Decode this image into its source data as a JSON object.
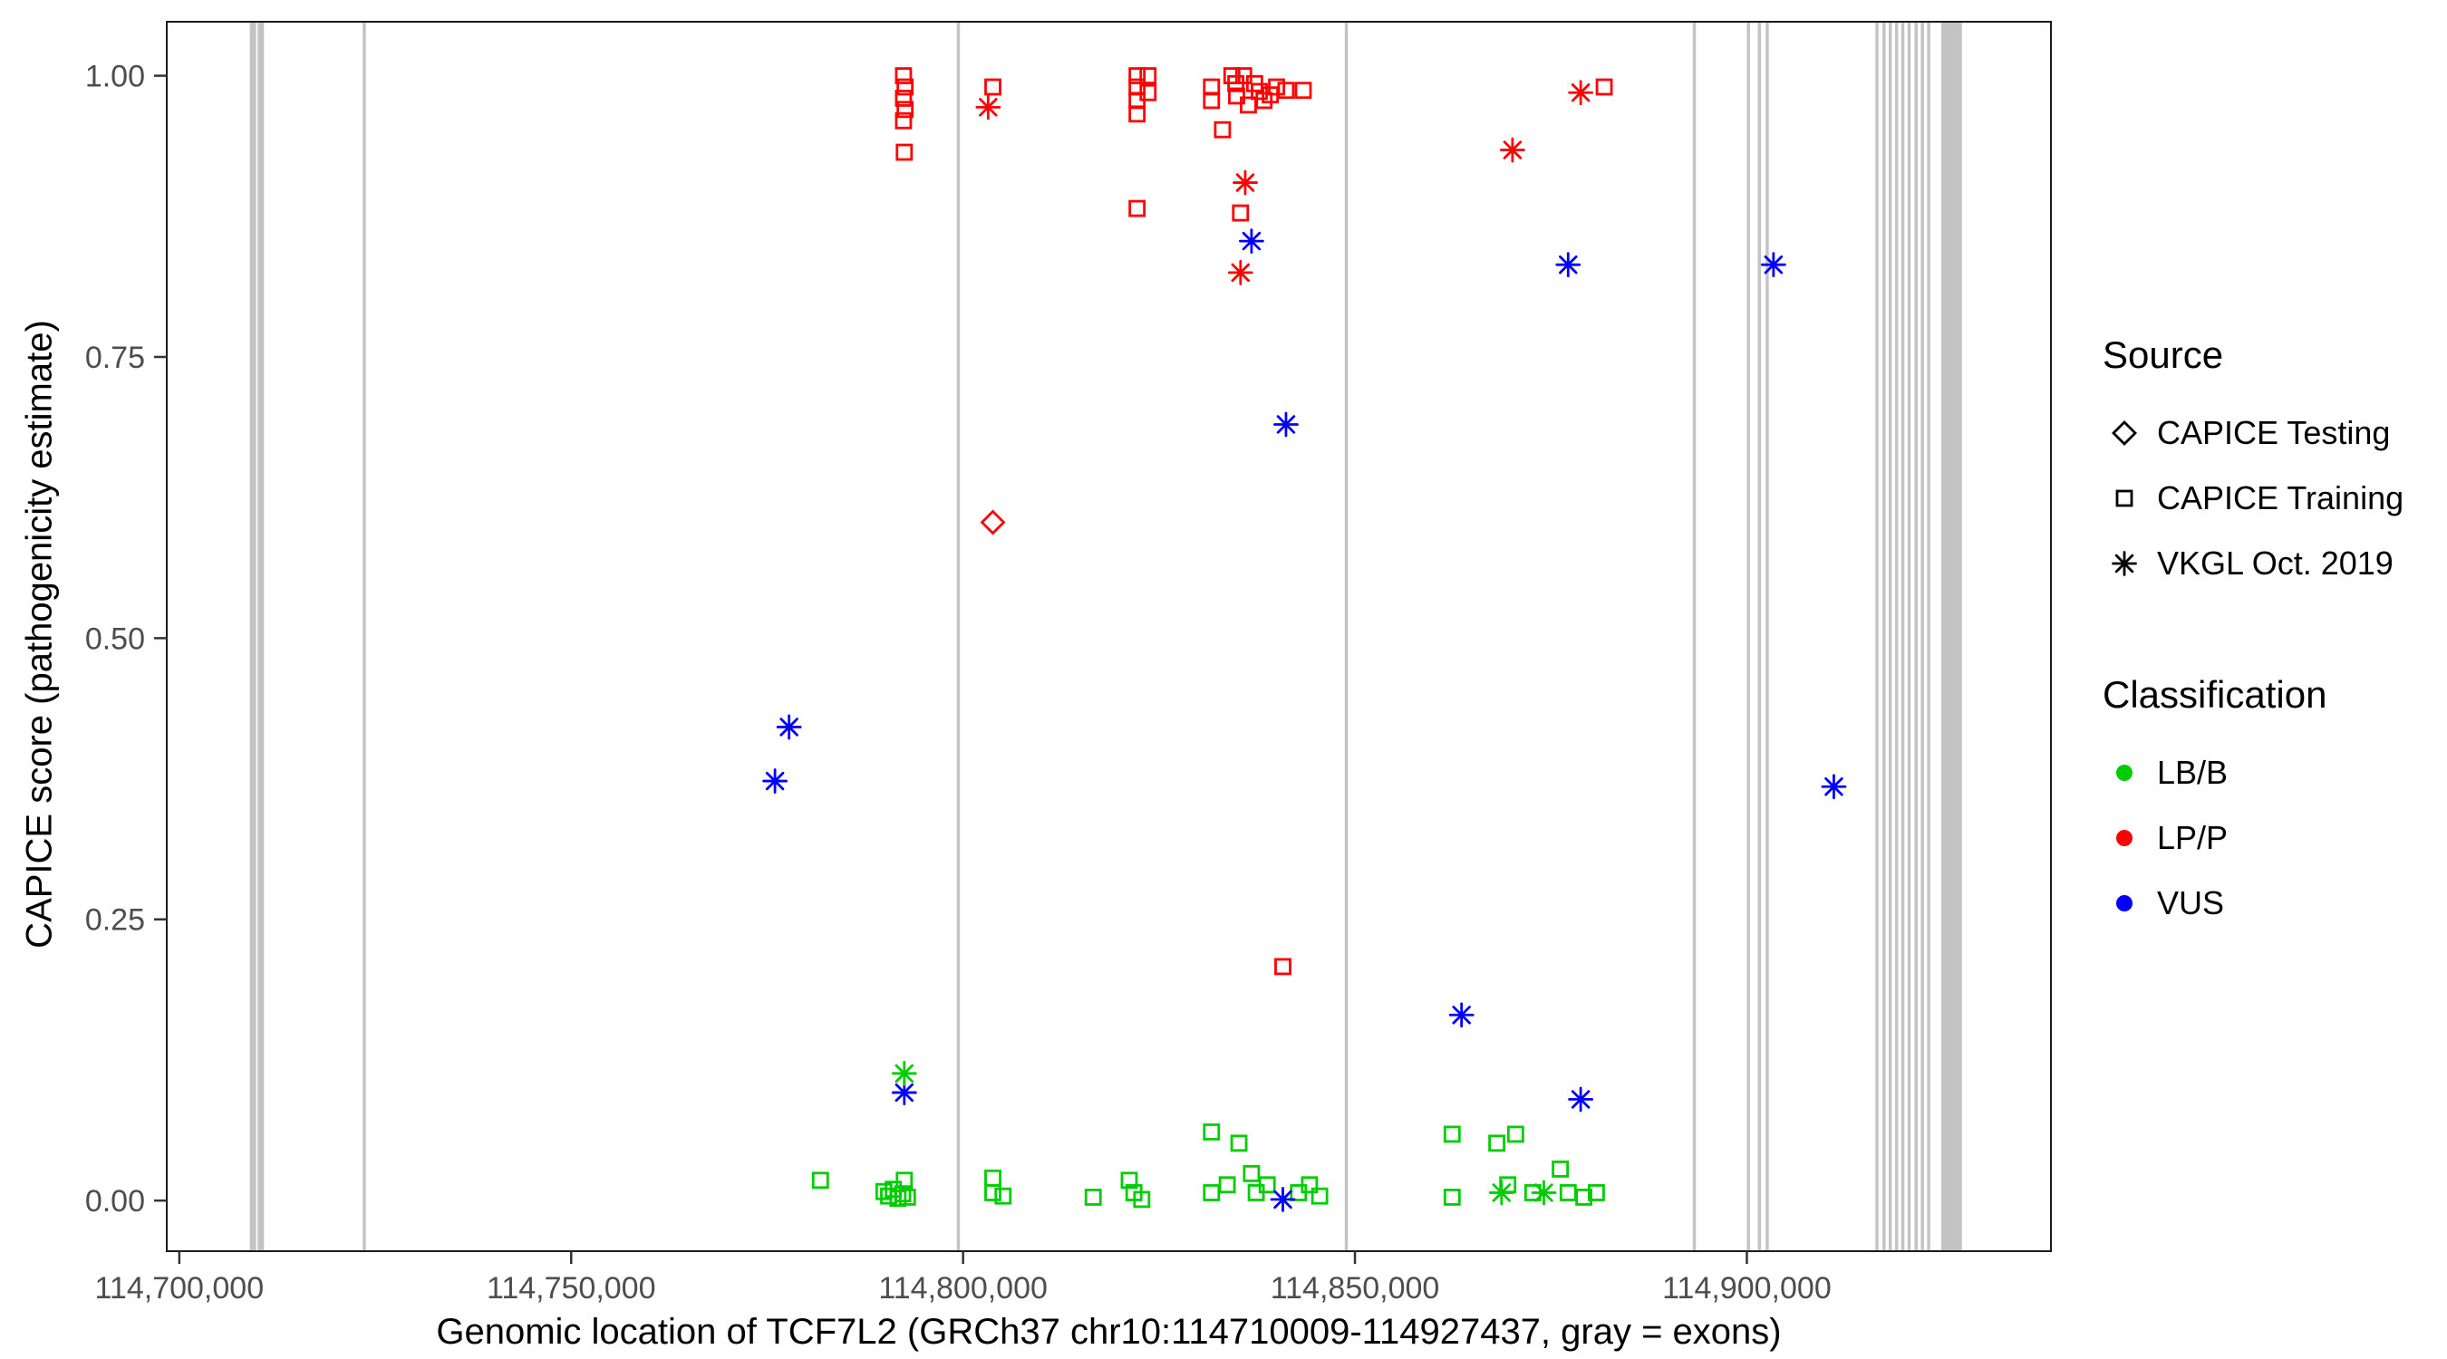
{
  "chart_data": {
    "type": "scatter",
    "title": "",
    "xlabel": "Genomic location of TCF7L2 (GRCh37 chr10:114710009-114927437, gray = exons)",
    "ylabel": "CAPICE score (pathogenicity estimate)",
    "x_axis": {
      "min": 114698400,
      "max": 114938800,
      "ticks": [
        {
          "value": 114700000,
          "label": "114,700,000"
        },
        {
          "value": 114750000,
          "label": "114,750,000"
        },
        {
          "value": 114800000,
          "label": "114,800,000"
        },
        {
          "value": 114850000,
          "label": "114,850,000"
        },
        {
          "value": 114900000,
          "label": "114,900,000"
        }
      ]
    },
    "y_axis": {
      "min": -0.045,
      "max": 1.048,
      "ticks": [
        {
          "value": 0,
          "label": "0.00"
        },
        {
          "value": 0.25,
          "label": "0.25"
        },
        {
          "value": 0.5,
          "label": "0.50"
        },
        {
          "value": 0.75,
          "label": "0.75"
        },
        {
          "value": 1,
          "label": "1.00"
        }
      ]
    },
    "grid": "off",
    "legend_position": "right",
    "exon_color": "#C3C3C3",
    "exons": [
      [
        114709000,
        114709800
      ],
      [
        114710000,
        114710800
      ],
      [
        114723400,
        114723800
      ],
      [
        114799200,
        114799600
      ],
      [
        114848700,
        114849100
      ],
      [
        114893100,
        114893500
      ],
      [
        114900000,
        114900400
      ],
      [
        114901400,
        114901800
      ],
      [
        114902400,
        114902800
      ],
      [
        114916400,
        114916800
      ],
      [
        114917300,
        114917700
      ],
      [
        114918100,
        114918500
      ],
      [
        114918900,
        114919300
      ],
      [
        114919700,
        114920100
      ],
      [
        114920500,
        114920900
      ],
      [
        114921400,
        114921800
      ],
      [
        114922200,
        114922600
      ],
      [
        114923000,
        114923400
      ],
      [
        114924800,
        114927437
      ]
    ],
    "colors": {
      "LB/B": "#00CD00",
      "LP/P": "#FF0000",
      "VUS": "#0000FF"
    },
    "shapes": {
      "CAPICE Testing": "diamond",
      "CAPICE Training": "square",
      "VKGL Oct. 2019": "asterisk"
    },
    "series": [
      {
        "source": "CAPICE Testing",
        "classification": "LP/P",
        "points": [
          [
            114803800,
            0.603
          ]
        ]
      },
      {
        "source": "CAPICE Training",
        "classification": "LP/P",
        "points": [
          [
            114792400,
            1.0
          ],
          [
            114792600,
            0.99
          ],
          [
            114792400,
            0.98
          ],
          [
            114792600,
            0.97
          ],
          [
            114792400,
            0.96
          ],
          [
            114792500,
            0.932
          ],
          [
            114803800,
            0.99
          ],
          [
            114822200,
            1.0
          ],
          [
            114822200,
            0.99
          ],
          [
            114822200,
            0.978
          ],
          [
            114822200,
            0.966
          ],
          [
            114823600,
            1.0
          ],
          [
            114823600,
            0.985
          ],
          [
            114822200,
            0.882
          ],
          [
            114831700,
            0.99
          ],
          [
            114831700,
            0.978
          ],
          [
            114833100,
            0.952
          ],
          [
            114834300,
            1.0
          ],
          [
            114834800,
            0.993
          ],
          [
            114834900,
            0.982
          ],
          [
            114835800,
            1.0
          ],
          [
            114836400,
            0.974
          ],
          [
            114837200,
            0.993
          ],
          [
            114837800,
            0.986
          ],
          [
            114838400,
            0.978
          ],
          [
            114839200,
            0.983
          ],
          [
            114840000,
            0.99
          ],
          [
            114841200,
            0.987
          ],
          [
            114843400,
            0.987
          ],
          [
            114835400,
            0.878
          ],
          [
            114840800,
            0.208
          ],
          [
            114881800,
            0.99
          ]
        ]
      },
      {
        "source": "CAPICE Training",
        "classification": "LB/B",
        "points": [
          [
            114781800,
            0.018
          ],
          [
            114789900,
            0.008
          ],
          [
            114790500,
            0.004
          ],
          [
            114791100,
            0.01
          ],
          [
            114791700,
            0.002
          ],
          [
            114792300,
            0.006
          ],
          [
            114792900,
            0.003
          ],
          [
            114792500,
            0.018
          ],
          [
            114803800,
            0.02
          ],
          [
            114803800,
            0.007
          ],
          [
            114805100,
            0.004
          ],
          [
            114816600,
            0.003
          ],
          [
            114821200,
            0.018
          ],
          [
            114821800,
            0.007
          ],
          [
            114822800,
            0.001
          ],
          [
            114831700,
            0.061
          ],
          [
            114831700,
            0.007
          ],
          [
            114833700,
            0.014
          ],
          [
            114835200,
            0.051
          ],
          [
            114836800,
            0.024
          ],
          [
            114837400,
            0.007
          ],
          [
            114838800,
            0.014
          ],
          [
            114842800,
            0.007
          ],
          [
            114844200,
            0.014
          ],
          [
            114845500,
            0.004
          ],
          [
            114862400,
            0.059
          ],
          [
            114862400,
            0.003
          ],
          [
            114868100,
            0.051
          ],
          [
            114869500,
            0.014
          ],
          [
            114870500,
            0.059
          ],
          [
            114872700,
            0.007
          ],
          [
            114876200,
            0.028
          ],
          [
            114877200,
            0.007
          ],
          [
            114879200,
            0.003
          ],
          [
            114880800,
            0.007
          ]
        ]
      },
      {
        "source": "VKGL Oct. 2019",
        "classification": "LP/P",
        "points": [
          [
            114803200,
            0.972
          ],
          [
            114836000,
            0.905
          ],
          [
            114835400,
            0.825
          ],
          [
            114870100,
            0.934
          ],
          [
            114878800,
            0.985
          ]
        ]
      },
      {
        "source": "VKGL Oct. 2019",
        "classification": "VUS",
        "points": [
          [
            114776000,
            0.373
          ],
          [
            114777800,
            0.421
          ],
          [
            114792500,
            0.096
          ],
          [
            114836800,
            0.853
          ],
          [
            114841200,
            0.69
          ],
          [
            114840800,
            0.001
          ],
          [
            114863600,
            0.165
          ],
          [
            114877200,
            0.832
          ],
          [
            114878800,
            0.09
          ],
          [
            114903400,
            0.832
          ],
          [
            114911100,
            0.368
          ]
        ]
      },
      {
        "source": "VKGL Oct. 2019",
        "classification": "LB/B",
        "points": [
          [
            114792500,
            0.113
          ],
          [
            114868700,
            0.007
          ],
          [
            114874100,
            0.007
          ]
        ]
      }
    ]
  },
  "legend": {
    "source": {
      "title": "Source",
      "items": [
        {
          "label": "CAPICE Testing",
          "shape": "diamond"
        },
        {
          "label": "CAPICE Training",
          "shape": "square"
        },
        {
          "label": "VKGL Oct. 2019",
          "shape": "asterisk"
        }
      ]
    },
    "classification": {
      "title": "Classification",
      "items": [
        {
          "label": "LB/B",
          "color": "#00CD00"
        },
        {
          "label": "LP/P",
          "color": "#FF0000"
        },
        {
          "label": "VUS",
          "color": "#0000FF"
        }
      ]
    }
  }
}
